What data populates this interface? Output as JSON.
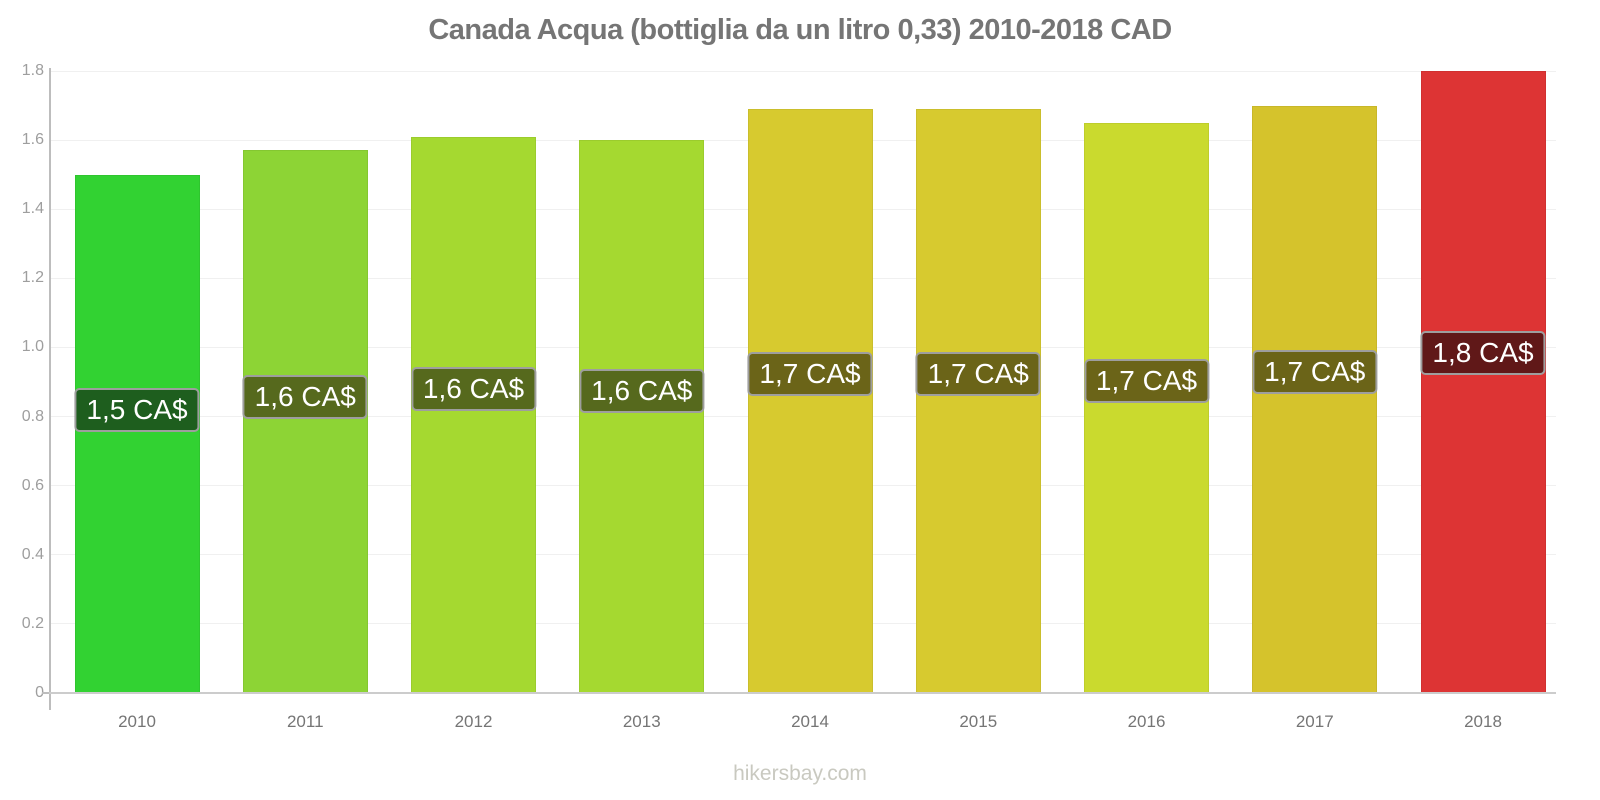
{
  "title": "Canada Acqua (bottiglia da un litro 0,33) 2010-2018 CAD",
  "footer": "hikersbay.com",
  "colors": {
    "title_text": "#757575",
    "axis_line": "#bdbdbd",
    "baseline": "#cccccc",
    "grid": "#f0f0f0",
    "y_tick_text": "#9e9e9e",
    "x_tick_text": "#757575",
    "bar_label_text": "#ffffff",
    "bar_label_border": "#9e9e9e",
    "footer_text": "#c9c9c0"
  },
  "chart_data": {
    "type": "bar",
    "title": "Canada Acqua (bottiglia da un litro 0,33) 2010-2018 CAD",
    "xlabel": "",
    "ylabel": "",
    "categories": [
      "2010",
      "2011",
      "2012",
      "2013",
      "2014",
      "2015",
      "2016",
      "2017",
      "2018"
    ],
    "values": [
      1.5,
      1.57,
      1.61,
      1.6,
      1.69,
      1.69,
      1.65,
      1.7,
      1.8
    ],
    "bar_labels": [
      "1,5 CA$",
      "1,6 CA$",
      "1,6 CA$",
      "1,6 CA$",
      "1,7 CA$",
      "1,7 CA$",
      "1,7 CA$",
      "1,7 CA$",
      "1,8 CA$"
    ],
    "bar_colors": [
      "#32d232",
      "#8dd435",
      "#a5d930",
      "#a5d930",
      "#d7ca2f",
      "#d7ca2f",
      "#cada2e",
      "#d5c32c",
      "#dd3434"
    ],
    "bar_label_bg_colors": [
      "#1e5e1e",
      "#56691d",
      "#56691d",
      "#56691d",
      "#6b6418",
      "#6b6418",
      "#6b6418",
      "#6b6418",
      "#601818"
    ],
    "ylim": [
      0,
      1.8
    ],
    "yticks": [
      0,
      0.2,
      0.4,
      0.6,
      0.8,
      1.0,
      1.2,
      1.4,
      1.6,
      1.8
    ],
    "ytick_labels": [
      "0",
      "0.2",
      "0.4",
      "0.6",
      "0.8",
      "1.0",
      "1.2",
      "1.4",
      "1.6",
      "1.8"
    ],
    "grid": true,
    "legend": false
  }
}
